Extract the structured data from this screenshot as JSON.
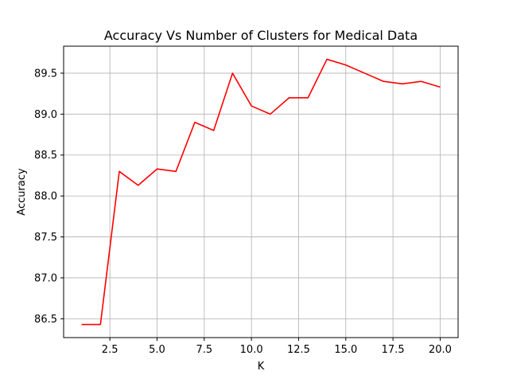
{
  "chart_data": {
    "type": "line",
    "title": "Accuracy Vs Number of Clusters for Medical Data",
    "xlabel": "K",
    "ylabel": "Accuracy",
    "xlim": [
      0.05,
      20.95
    ],
    "ylim": [
      86.27,
      89.83
    ],
    "x_ticks": [
      2.5,
      5.0,
      7.5,
      10.0,
      12.5,
      15.0,
      17.5,
      20.0
    ],
    "x_tick_labels": [
      "2.5",
      "5.0",
      "7.5",
      "10.0",
      "12.5",
      "15.0",
      "17.5",
      "20.0"
    ],
    "y_ticks": [
      86.5,
      87.0,
      87.5,
      88.0,
      88.5,
      89.0,
      89.5
    ],
    "y_tick_labels": [
      "86.5",
      "87.0",
      "87.5",
      "88.0",
      "88.5",
      "89.0",
      "89.5"
    ],
    "grid": true,
    "series": [
      {
        "color": "#ff0000",
        "x": [
          1,
          2,
          3,
          4,
          5,
          6,
          7,
          8,
          9,
          10,
          11,
          12,
          13,
          14,
          15,
          16,
          17,
          18,
          19,
          20
        ],
        "y": [
          86.43,
          86.43,
          88.3,
          88.13,
          88.33,
          88.3,
          88.9,
          88.8,
          89.5,
          89.1,
          89.0,
          89.2,
          89.2,
          89.67,
          89.6,
          89.5,
          89.4,
          89.37,
          89.4,
          89.33
        ]
      }
    ]
  }
}
